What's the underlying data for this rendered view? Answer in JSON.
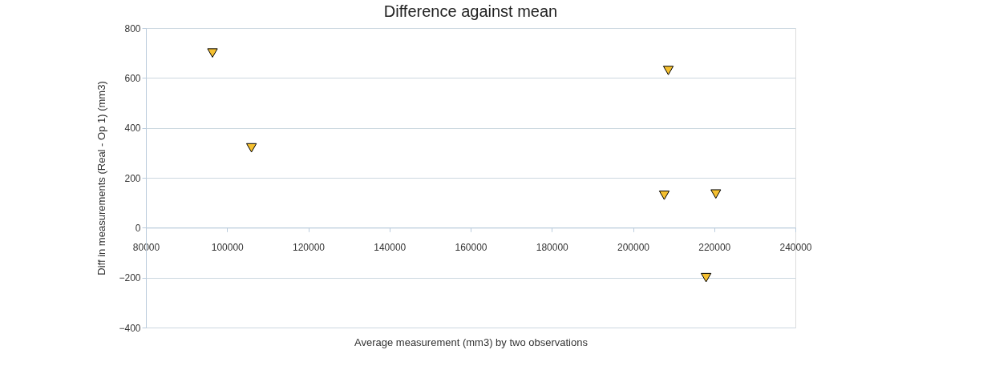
{
  "chart_data": {
    "type": "scatter",
    "title": "Difference against mean",
    "xlabel": "Average measurement (mm3) by two observations",
    "ylabel": "Diff in measurements (Real - Op 1) (mm3)",
    "series": [
      {
        "color": "#f5c030",
        "x": [
          96400,
          106000,
          208700,
          207700,
          220400,
          218000
        ],
        "values": [
          700,
          320,
          630,
          130,
          135,
          -200
        ]
      }
    ],
    "xlim": [
      80000,
      240000
    ],
    "xticks": [
      80000,
      100000,
      120000,
      140000,
      160000,
      180000,
      200000,
      220000,
      240000
    ],
    "ylim": [
      -400,
      800
    ],
    "yticks": [
      -400,
      -200,
      0,
      200,
      400,
      600,
      800
    ],
    "grid": "y",
    "marker": "triangle",
    "legend": false
  }
}
